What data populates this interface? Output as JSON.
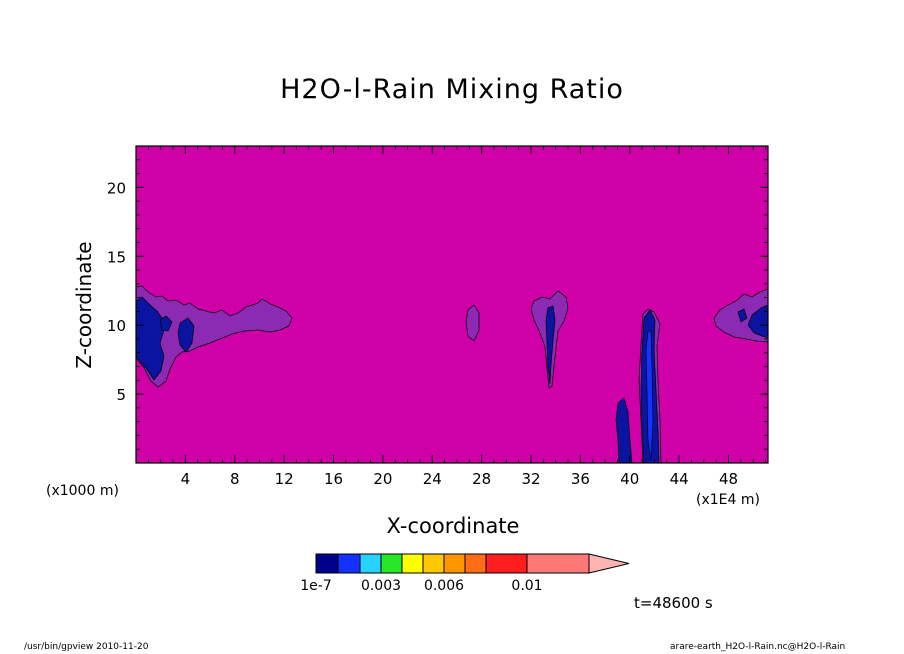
{
  "chart_data": {
    "type": "heatmap",
    "title": "H2O-l-Rain Mixing Ratio",
    "xlabel": "X-coordinate",
    "ylabel": "Z-coordinate",
    "x_unit_left": "(x1000 m)",
    "x_unit_right": "(x1E4 m)",
    "xlim": [
      0,
      51.2
    ],
    "ylim": [
      0,
      23
    ],
    "x_ticks": [
      4,
      8,
      12,
      16,
      20,
      24,
      28,
      32,
      36,
      40,
      44,
      48
    ],
    "y_ticks": [
      5,
      10,
      15,
      20
    ],
    "background_level_color": "#d000a8",
    "colorbar": {
      "colors": [
        "#00008c",
        "#1432ff",
        "#28d2ff",
        "#28e628",
        "#ffff00",
        "#ffc800",
        "#ff9600",
        "#ff6e14",
        "#ff1e1e",
        "#ff7878",
        "#ffb4b4"
      ],
      "labels": [
        "1e-7",
        "0.003",
        "0.006",
        "0.01"
      ],
      "label_values": [
        0,
        0.003,
        0.006,
        0.01
      ]
    },
    "regions": [
      {
        "name": "left edge cloud",
        "x_range": [
          0,
          12.5
        ],
        "z_range": [
          5.8,
          12.8
        ]
      },
      {
        "name": "small patch",
        "x_range": [
          26.8,
          27.9
        ],
        "z_range": [
          9.0,
          11.4
        ]
      },
      {
        "name": "narrow column",
        "x_range": [
          32.2,
          35.2
        ],
        "z_range": [
          5.5,
          12.5
        ]
      },
      {
        "name": "rain shaft",
        "x_range": [
          39.2,
          43.0
        ],
        "z_range": [
          0,
          11.0
        ]
      },
      {
        "name": "right edge cloud",
        "x_range": [
          46.2,
          51.2
        ],
        "z_range": [
          8.3,
          12.7
        ]
      }
    ]
  },
  "labels": {
    "time": "t=48600 s",
    "footer_left": "/usr/bin/gpview   2010-11-20",
    "footer_right": "arare-earth_H2O-l-Rain.nc@H2O-l-Rain"
  }
}
